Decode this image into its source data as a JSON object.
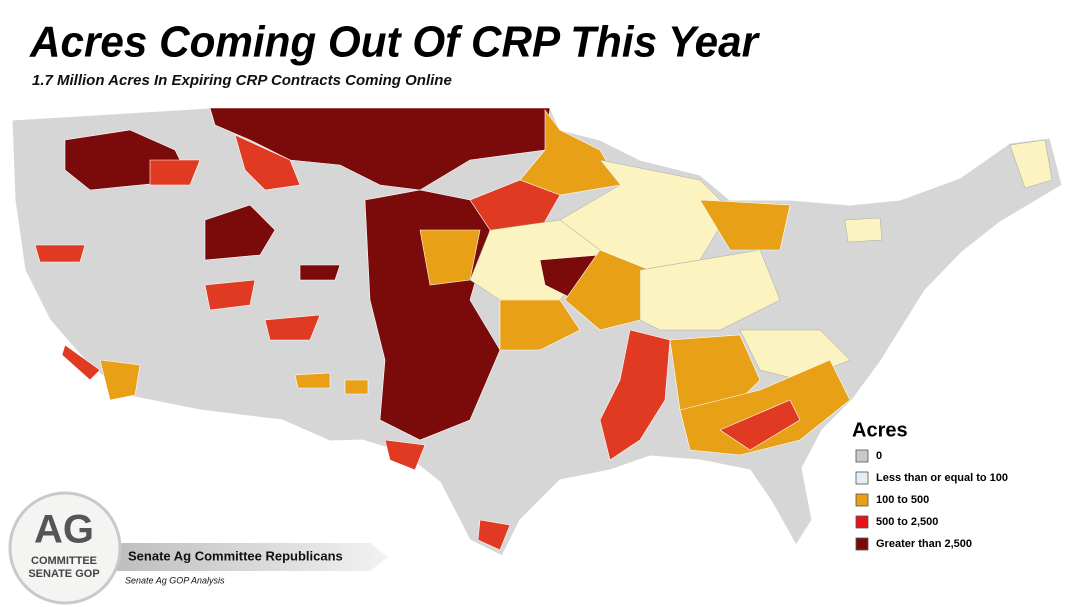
{
  "header": {
    "title": "Acres Coming Out Of CRP This Year",
    "subtitle": "1.7 Million Acres In Expiring CRP Contracts Coming Online"
  },
  "legend": {
    "title": "Acres",
    "items": [
      {
        "label": "0",
        "color": "#c8c8c8"
      },
      {
        "label": "Less than or equal to 100",
        "color": "#e6eef5"
      },
      {
        "label": "100 to 500",
        "color": "#e8a017"
      },
      {
        "label": "500 to 2,500",
        "color": "#e5141a"
      },
      {
        "label": "Greater than 2,500",
        "color": "#7b0a0a"
      }
    ]
  },
  "logo": {
    "mark": "AG",
    "line1": "COMMITTEE",
    "line2": "SENATE GOP"
  },
  "banner": {
    "name": "Senate Ag Committee Republicans",
    "source": "Senate Ag GOP Analysis"
  }
}
